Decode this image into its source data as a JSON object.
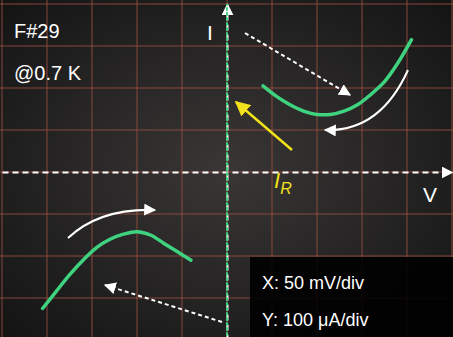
{
  "chart_data": {
    "type": "line",
    "x_label": "V",
    "y_label": "I",
    "annotations": [
      "F#29",
      "@0.7 K"
    ],
    "scale_labels": [
      "X: 50 mV/div",
      "Y: 100 μA/div"
    ],
    "marker_label": {
      "text": "I",
      "subscript": "R"
    },
    "xlim": [
      -250,
      250
    ],
    "ylim": [
      -400,
      400
    ],
    "xticks": [
      -250,
      -200,
      -150,
      -100,
      -50,
      0,
      50,
      100,
      150,
      200,
      250
    ],
    "yticks": [
      -400,
      -300,
      -200,
      -100,
      0,
      100,
      200,
      300,
      400
    ],
    "grid": true,
    "tick_labels": false,
    "series": [
      {
        "color": "#3fd37f",
        "line_style": "solid",
        "x": [
          40,
          55,
          70,
          85,
          100,
          115,
          130,
          145,
          160,
          175,
          190,
          205
        ],
        "values": [
          205,
          180,
          160,
          145,
          137,
          137,
          145,
          160,
          185,
          215,
          260,
          315
        ]
      },
      {
        "color": "#3fd37f",
        "line_style": "solid",
        "x": [
          -205,
          -190,
          -175,
          -160,
          -145,
          -130,
          -115,
          -100,
          -85,
          -70,
          -55,
          -40
        ],
        "values": [
          -325,
          -285,
          -245,
          -210,
          -180,
          -160,
          -148,
          -142,
          -150,
          -170,
          -190,
          -210
        ]
      },
      {
        "color": "#3fd37f",
        "line_style": "dotted",
        "x": [
          0,
          0
        ],
        "values": [
          -400,
          400
        ]
      }
    ]
  }
}
